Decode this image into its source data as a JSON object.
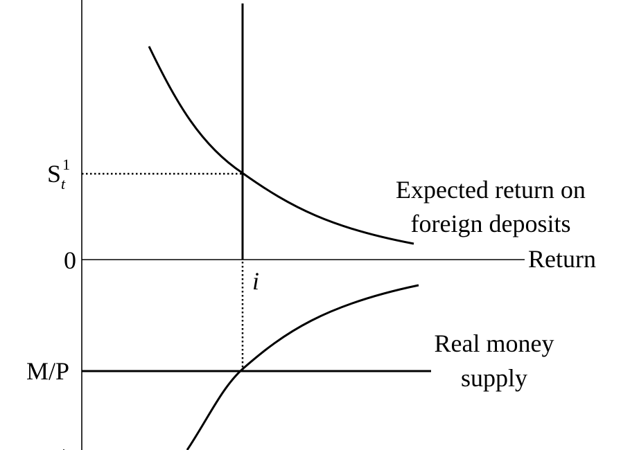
{
  "labels": {
    "spot_rate_base": "S",
    "spot_rate_sub": "t",
    "spot_rate_sup": "1",
    "origin": "0",
    "return_axis": "Return",
    "interest_rate": "i",
    "real_money_supply_value": "M/P",
    "expected_return_line1": "Expected return on",
    "expected_return_line2": "foreign deposits",
    "real_money_supply_line1": "Real money",
    "real_money_supply_line2": "supply"
  },
  "colors": {
    "ink": "#000000",
    "background": "#ffffff"
  }
}
